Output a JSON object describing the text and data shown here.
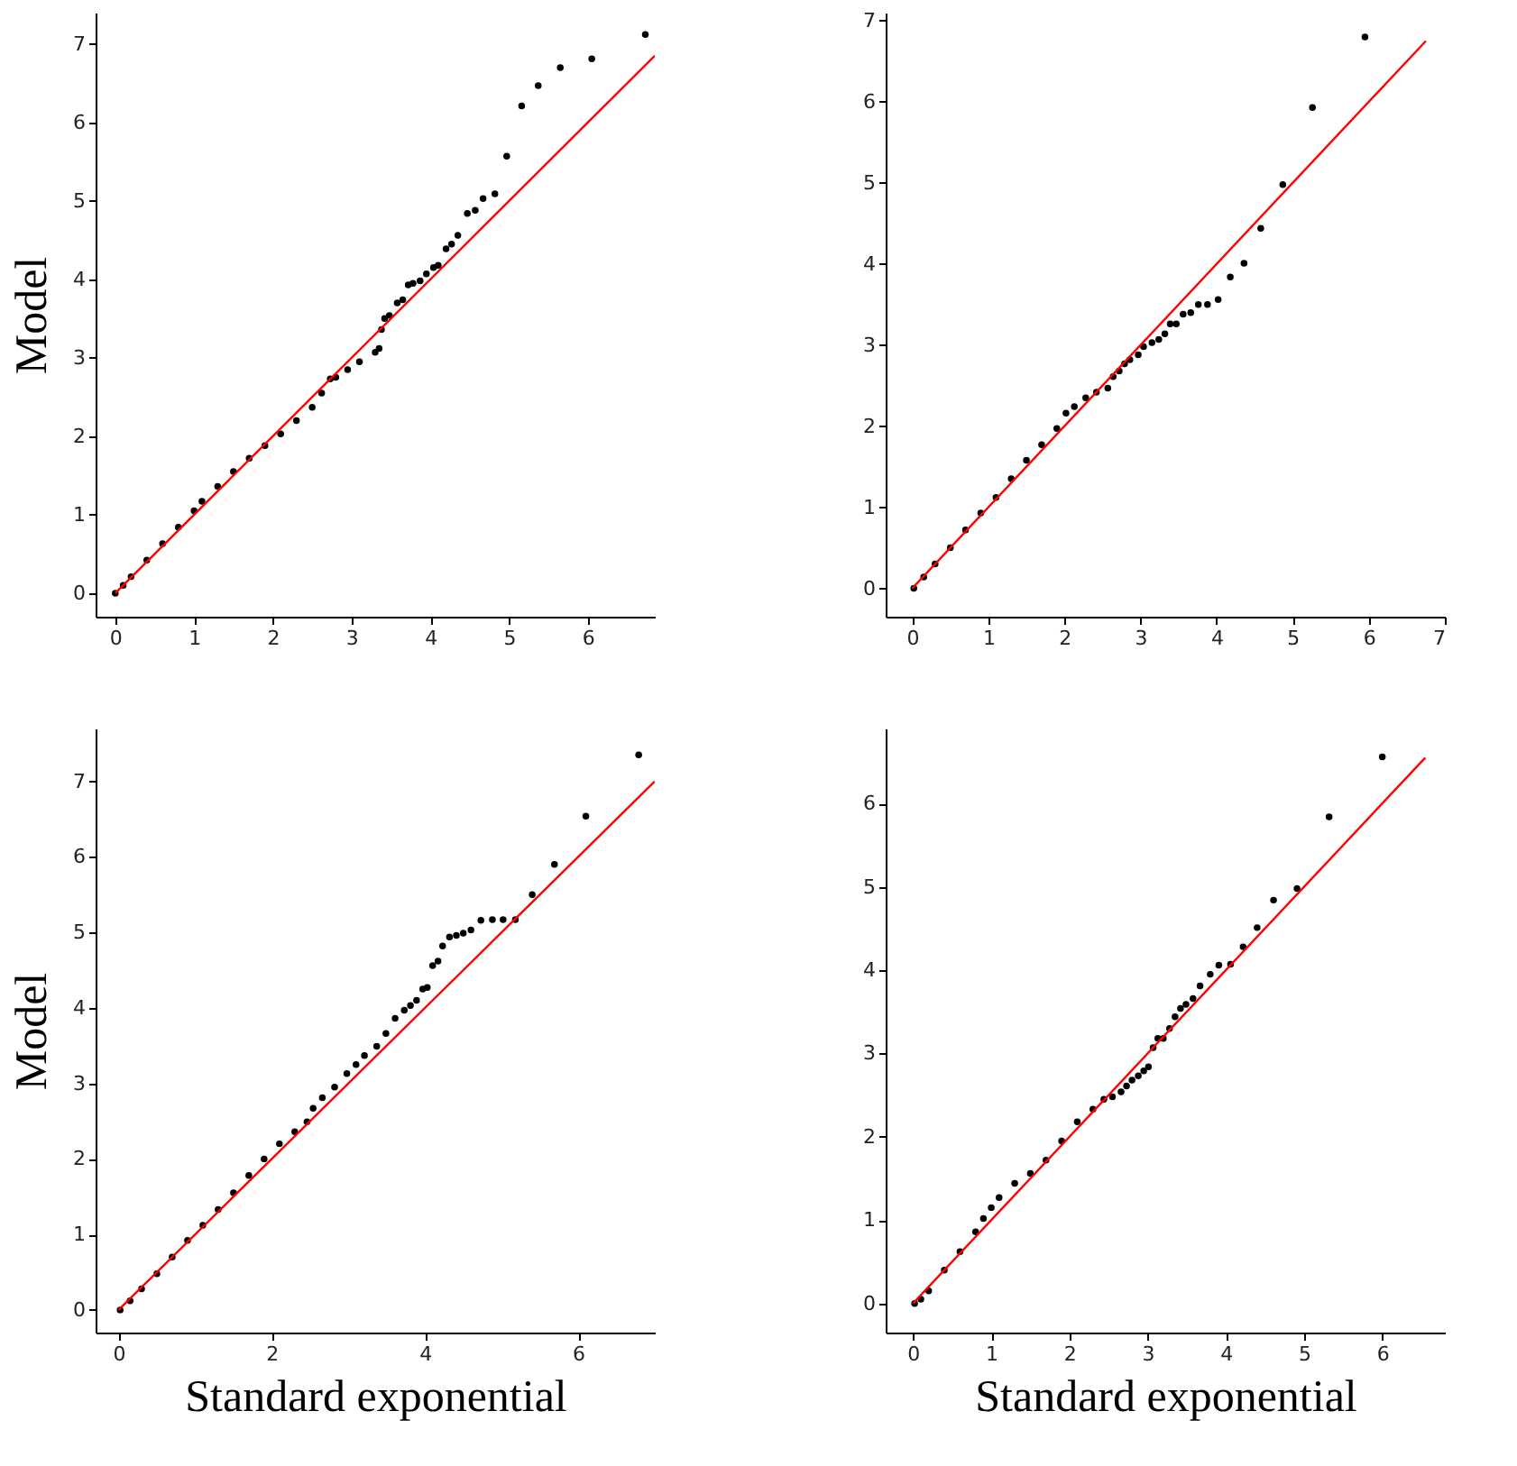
{
  "chart_data": [
    {
      "type": "scatter",
      "ylabel": "Model",
      "xlim": [
        -0.25,
        6.85
      ],
      "ylim": [
        -0.3,
        7.4
      ],
      "xticks": [
        0,
        1,
        2,
        3,
        4,
        5,
        6
      ],
      "yticks": [
        0,
        1,
        2,
        3,
        4,
        5,
        6,
        7
      ],
      "grid": false,
      "series": [
        {
          "color": "#000000",
          "marker": "circle",
          "x": [
            0.0,
            0.1,
            0.2,
            0.4,
            0.6,
            0.8,
            1.0,
            1.1,
            1.3,
            1.5,
            1.7,
            1.9,
            2.1,
            2.3,
            2.5,
            2.62,
            2.73,
            2.8,
            2.95,
            3.1,
            3.3,
            3.35,
            3.38,
            3.42,
            3.48,
            3.58,
            3.65,
            3.72,
            3.78,
            3.87,
            3.95,
            4.04,
            4.1,
            4.2,
            4.27,
            4.35,
            4.47,
            4.57,
            4.67,
            4.82,
            4.97,
            5.16,
            5.37,
            5.65,
            6.05,
            6.73
          ],
          "values": [
            0.0,
            0.1,
            0.21,
            0.42,
            0.63,
            0.84,
            1.05,
            1.17,
            1.36,
            1.55,
            1.72,
            1.88,
            2.03,
            2.2,
            2.37,
            2.55,
            2.73,
            2.75,
            2.85,
            2.95,
            3.07,
            3.12,
            3.36,
            3.5,
            3.54,
            3.7,
            3.74,
            3.93,
            3.95,
            3.98,
            4.07,
            4.15,
            4.18,
            4.39,
            4.45,
            4.56,
            4.84,
            4.88,
            5.03,
            5.09,
            5.57,
            6.21,
            6.47,
            6.7,
            6.81,
            7.12
          ]
        },
        {
          "type": "line",
          "color": "#ff0000",
          "line_style": "solid",
          "x": [
            0,
            6.85
          ],
          "values": [
            0,
            6.85
          ]
        }
      ]
    },
    {
      "type": "scatter",
      "xlim": [
        -0.35,
        7.0
      ],
      "ylim": [
        -0.35,
        7.1
      ],
      "xticks": [
        0,
        1,
        2,
        3,
        4,
        5,
        6,
        7
      ],
      "yticks": [
        0,
        1,
        2,
        3,
        4,
        5,
        6,
        7
      ],
      "grid": false,
      "series": [
        {
          "color": "#000000",
          "marker": "circle",
          "x": [
            0.02,
            0.15,
            0.3,
            0.5,
            0.7,
            0.9,
            1.1,
            1.3,
            1.5,
            1.7,
            1.9,
            2.02,
            2.13,
            2.28,
            2.42,
            2.57,
            2.64,
            2.72,
            2.79,
            2.86,
            2.97,
            3.04,
            3.15,
            3.24,
            3.32,
            3.39,
            3.47,
            3.56,
            3.66,
            3.76,
            3.88,
            4.02,
            4.18,
            4.36,
            4.58,
            4.87,
            5.26,
            5.95
          ],
          "values": [
            0.0,
            0.14,
            0.3,
            0.5,
            0.72,
            0.93,
            1.12,
            1.35,
            1.58,
            1.77,
            1.97,
            2.16,
            2.24,
            2.35,
            2.42,
            2.47,
            2.61,
            2.68,
            2.77,
            2.82,
            2.88,
            2.98,
            3.03,
            3.07,
            3.14,
            3.26,
            3.26,
            3.38,
            3.4,
            3.5,
            3.5,
            3.56,
            3.84,
            4.01,
            4.44,
            4.98,
            5.93,
            6.8
          ]
        },
        {
          "type": "line",
          "color": "#ff0000",
          "line_style": "solid",
          "x": [
            0,
            6.75
          ],
          "values": [
            0,
            6.75
          ]
        }
      ]
    },
    {
      "type": "scatter",
      "xlabel": "Standard exponential",
      "ylabel": "Model",
      "xlim": [
        -0.3,
        7.0
      ],
      "ylim": [
        -0.3,
        7.7
      ],
      "xticks": [
        0,
        2,
        4,
        6
      ],
      "yticks": [
        0,
        1,
        2,
        3,
        4,
        5,
        6,
        7
      ],
      "grid": false,
      "series": [
        {
          "color": "#000000",
          "marker": "circle",
          "x": [
            0.02,
            0.15,
            0.3,
            0.5,
            0.7,
            0.9,
            1.1,
            1.3,
            1.5,
            1.7,
            1.9,
            2.1,
            2.3,
            2.46,
            2.54,
            2.66,
            2.82,
            2.98,
            3.1,
            3.21,
            3.37,
            3.49,
            3.61,
            3.73,
            3.81,
            3.89,
            3.97,
            4.03,
            4.1,
            4.17,
            4.23,
            4.32,
            4.41,
            4.5,
            4.6,
            4.73,
            4.88,
            5.02,
            5.18,
            5.4,
            5.69,
            6.1,
            6.79
          ],
          "values": [
            0.0,
            0.12,
            0.28,
            0.48,
            0.7,
            0.92,
            1.12,
            1.33,
            1.55,
            1.78,
            2.0,
            2.2,
            2.36,
            2.49,
            2.67,
            2.81,
            2.95,
            3.13,
            3.25,
            3.37,
            3.49,
            3.66,
            3.86,
            3.97,
            4.03,
            4.1,
            4.25,
            4.27,
            4.56,
            4.62,
            4.82,
            4.94,
            4.96,
            4.99,
            5.03,
            5.16,
            5.17,
            5.17,
            5.17,
            5.5,
            5.9,
            6.54,
            7.35
          ]
        },
        {
          "type": "line",
          "color": "#ff0000",
          "line_style": "solid",
          "x": [
            0,
            7.0
          ],
          "values": [
            0,
            7.0
          ]
        }
      ]
    },
    {
      "type": "scatter",
      "xlabel": "Standard exponential",
      "xlim": [
        -0.35,
        6.8
      ],
      "ylim": [
        -0.35,
        6.9
      ],
      "xticks": [
        0,
        1,
        2,
        3,
        4,
        5,
        6
      ],
      "yticks": [
        0,
        1,
        2,
        3,
        4,
        5,
        6
      ],
      "grid": false,
      "series": [
        {
          "color": "#000000",
          "marker": "circle",
          "x": [
            0.02,
            0.1,
            0.2,
            0.4,
            0.6,
            0.8,
            0.9,
            1.0,
            1.1,
            1.3,
            1.5,
            1.7,
            1.9,
            2.1,
            2.3,
            2.44,
            2.55,
            2.66,
            2.73,
            2.8,
            2.88,
            2.95,
            3.01,
            3.07,
            3.13,
            3.2,
            3.28,
            3.35,
            3.42,
            3.49,
            3.58,
            3.67,
            3.8,
            3.91,
            4.06,
            4.22,
            4.4,
            4.61,
            4.91,
            5.32,
            6.0
          ],
          "values": [
            0.0,
            0.05,
            0.15,
            0.4,
            0.62,
            0.86,
            1.02,
            1.15,
            1.27,
            1.44,
            1.56,
            1.72,
            1.95,
            2.18,
            2.33,
            2.45,
            2.48,
            2.54,
            2.61,
            2.68,
            2.73,
            2.79,
            2.84,
            3.07,
            3.18,
            3.18,
            3.3,
            3.44,
            3.54,
            3.59,
            3.66,
            3.81,
            3.95,
            4.06,
            4.07,
            4.28,
            4.51,
            4.84,
            4.98,
            5.84,
            6.56
          ]
        },
        {
          "type": "line",
          "color": "#ff0000",
          "line_style": "solid",
          "x": [
            0,
            6.55
          ],
          "values": [
            0,
            6.55
          ]
        }
      ]
    }
  ]
}
